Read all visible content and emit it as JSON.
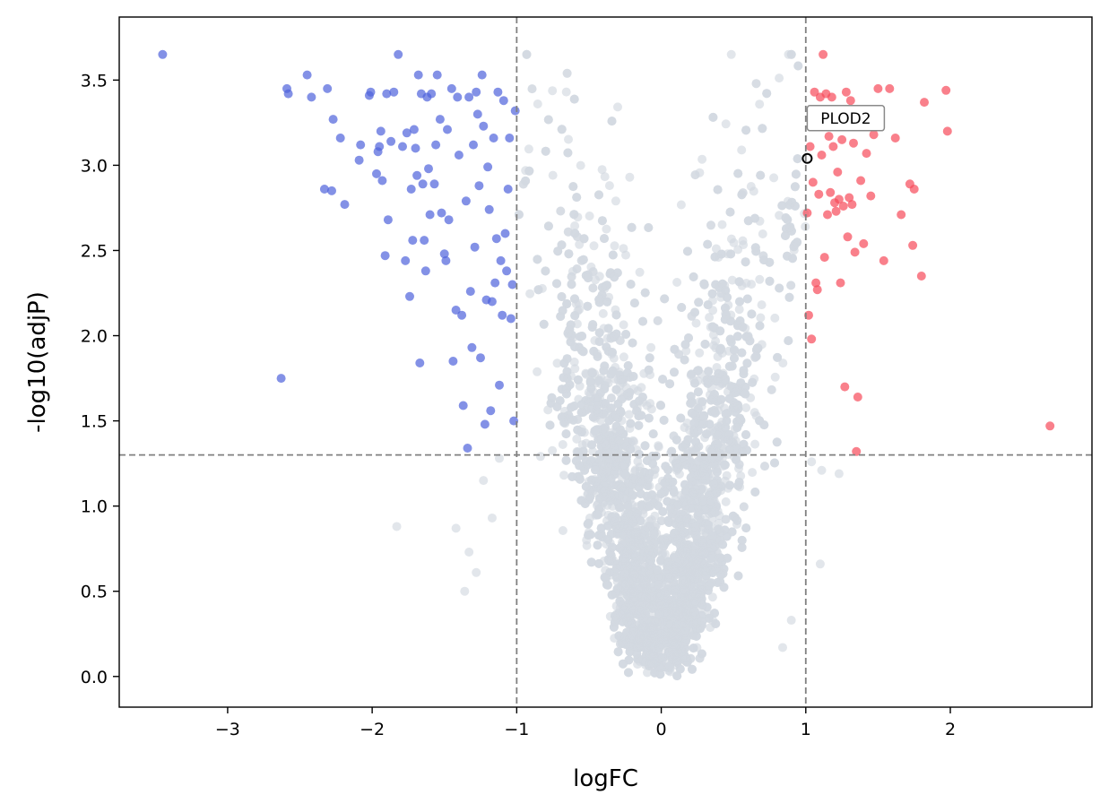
{
  "chart_data": {
    "type": "scatter",
    "title": "",
    "xlabel": "logFC",
    "ylabel": "-log10(adjP)",
    "xlim": [
      -3.75,
      2.98
    ],
    "ylim": [
      -0.18,
      3.87
    ],
    "xticks": [
      -3,
      -2,
      -1,
      0,
      1,
      2
    ],
    "xtick_labels": [
      "−3",
      "−2",
      "−1",
      "0",
      "1",
      "2"
    ],
    "yticks": [
      0.0,
      0.5,
      1.0,
      1.5,
      2.0,
      2.5,
      3.0,
      3.5
    ],
    "ytick_labels": [
      "0.0",
      "0.5",
      "1.0",
      "1.5",
      "2.0",
      "2.5",
      "3.0",
      "3.5"
    ],
    "grid": false,
    "thresholds": {
      "logFC": [
        -1,
        1
      ],
      "neg_log10_adjP": 1.3
    },
    "colors": {
      "down": "#4f63dc",
      "up": "#f74a5a",
      "ns": "#d2d9e1",
      "threshold": "#808080",
      "highlight_edge": "#000000"
    },
    "series": [
      {
        "group": "down",
        "x": [
          -3.45,
          -2.63,
          -2.59,
          -2.58,
          -2.45,
          -2.42,
          -2.33,
          -2.31,
          -2.28,
          -2.27,
          -2.22,
          -2.19,
          -2.09,
          -2.08,
          -2.02,
          -2.01,
          -1.97,
          -1.96,
          -1.95,
          -1.94,
          -1.93,
          -1.91,
          -1.9,
          -1.89,
          -1.87,
          -1.85,
          -1.82,
          -1.79,
          -1.77,
          -1.76,
          -1.74,
          -1.73,
          -1.72,
          -1.71,
          -1.7,
          -1.69,
          -1.68,
          -1.67,
          -1.66,
          -1.65,
          -1.64,
          -1.63,
          -1.62,
          -1.61,
          -1.6,
          -1.59,
          -1.57,
          -1.56,
          -1.55,
          -1.53,
          -1.52,
          -1.5,
          -1.49,
          -1.48,
          -1.47,
          -1.45,
          -1.44,
          -1.42,
          -1.41,
          -1.4,
          -1.38,
          -1.37,
          -1.35,
          -1.34,
          -1.33,
          -1.32,
          -1.31,
          -1.3,
          -1.29,
          -1.28,
          -1.27,
          -1.26,
          -1.25,
          -1.24,
          -1.23,
          -1.22,
          -1.21,
          -1.2,
          -1.19,
          -1.18,
          -1.17,
          -1.16,
          -1.15,
          -1.14,
          -1.13,
          -1.12,
          -1.11,
          -1.1,
          -1.09,
          -1.08,
          -1.07,
          -1.06,
          -1.05,
          -1.04,
          -1.03,
          -1.02,
          -1.01
        ],
        "y": [
          3.65,
          1.75,
          3.45,
          3.42,
          3.53,
          3.4,
          2.86,
          3.45,
          2.85,
          3.27,
          3.16,
          2.77,
          3.03,
          3.12,
          3.41,
          3.43,
          2.95,
          3.08,
          3.11,
          3.2,
          2.91,
          2.47,
          3.42,
          2.68,
          3.14,
          3.43,
          3.65,
          3.11,
          2.44,
          3.19,
          2.23,
          2.86,
          2.56,
          3.21,
          3.1,
          2.94,
          3.53,
          1.84,
          3.42,
          2.89,
          2.56,
          2.38,
          3.4,
          2.98,
          2.71,
          3.42,
          2.89,
          3.12,
          3.53,
          3.27,
          2.72,
          2.48,
          2.44,
          3.21,
          2.68,
          3.45,
          1.85,
          2.15,
          3.4,
          3.06,
          2.12,
          1.59,
          2.79,
          1.34,
          3.4,
          2.26,
          1.93,
          3.12,
          2.52,
          3.43,
          3.3,
          2.88,
          1.87,
          3.53,
          3.23,
          1.48,
          2.21,
          2.99,
          2.74,
          1.56,
          2.2,
          3.16,
          2.31,
          2.57,
          3.43,
          1.71,
          2.44,
          2.12,
          3.38,
          2.6,
          2.38,
          2.86,
          3.16,
          2.1,
          2.3,
          1.5,
          3.32
        ]
      },
      {
        "group": "up",
        "x": [
          1.01,
          1.02,
          1.03,
          1.04,
          1.05,
          1.06,
          1.07,
          1.08,
          1.09,
          1.1,
          1.11,
          1.12,
          1.13,
          1.14,
          1.15,
          1.16,
          1.17,
          1.18,
          1.19,
          1.2,
          1.21,
          1.22,
          1.23,
          1.24,
          1.25,
          1.26,
          1.27,
          1.28,
          1.29,
          1.3,
          1.31,
          1.32,
          1.33,
          1.34,
          1.35,
          1.36,
          1.38,
          1.4,
          1.42,
          1.45,
          1.47,
          1.5,
          1.54,
          1.58,
          1.62,
          1.66,
          1.72,
          1.74,
          1.75,
          1.8,
          1.82,
          1.97,
          1.98,
          2.69
        ],
        "y": [
          2.72,
          2.12,
          3.11,
          1.98,
          2.9,
          3.43,
          2.31,
          2.27,
          2.83,
          3.4,
          3.06,
          3.65,
          2.46,
          3.42,
          2.71,
          3.17,
          2.84,
          3.4,
          3.11,
          2.78,
          2.73,
          2.96,
          2.8,
          2.31,
          3.15,
          2.76,
          1.7,
          3.43,
          2.58,
          2.81,
          3.38,
          2.77,
          3.13,
          2.49,
          1.32,
          1.64,
          2.91,
          2.54,
          3.07,
          2.82,
          3.18,
          3.45,
          2.44,
          3.45,
          3.16,
          2.71,
          2.89,
          2.53,
          2.86,
          2.35,
          3.37,
          3.44,
          3.2,
          1.47
        ]
      },
      {
        "group": "ns",
        "generated": true,
        "count": 5200
      }
    ],
    "highlight": {
      "label": "PLOD2",
      "x": 1.01,
      "y": 3.04
    }
  }
}
